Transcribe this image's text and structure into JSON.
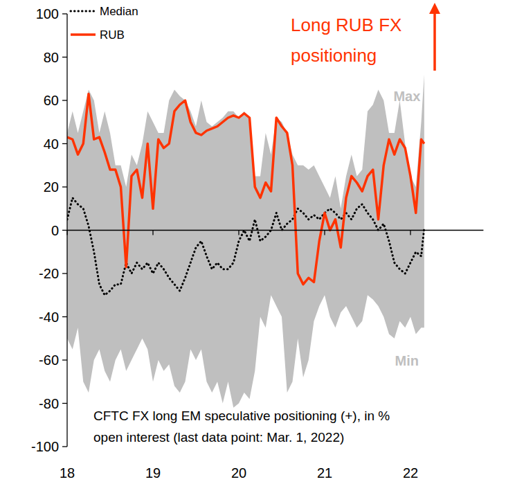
{
  "chart_data": {
    "type": "line",
    "x": [
      2018,
      2018.0625,
      2018.125,
      2018.1875,
      2018.25,
      2018.3125,
      2018.375,
      2018.4375,
      2018.5,
      2018.5625,
      2018.625,
      2018.6875,
      2018.75,
      2018.8125,
      2018.875,
      2018.9375,
      2019,
      2019.0625,
      2019.125,
      2019.1875,
      2019.25,
      2019.3125,
      2019.375,
      2019.4375,
      2019.5,
      2019.5625,
      2019.625,
      2019.6875,
      2019.75,
      2019.8125,
      2019.875,
      2019.9375,
      2020,
      2020.0625,
      2020.125,
      2020.1875,
      2020.25,
      2020.3125,
      2020.375,
      2020.4375,
      2020.5,
      2020.5625,
      2020.625,
      2020.6875,
      2020.75,
      2020.8125,
      2020.875,
      2020.9375,
      2021,
      2021.0625,
      2021.125,
      2021.1875,
      2021.25,
      2021.3125,
      2021.375,
      2021.4375,
      2021.5,
      2021.5625,
      2021.625,
      2021.6875,
      2021.75,
      2021.8125,
      2021.875,
      2021.9375,
      2022,
      2022.0625,
      2022.125,
      2022.16
    ],
    "xlim": [
      2018,
      2022.85
    ],
    "xticks": [
      {
        "value": 2018,
        "label": "18"
      },
      {
        "value": 2019,
        "label": "19"
      },
      {
        "value": 2020,
        "label": "20"
      },
      {
        "value": 2021,
        "label": "21"
      },
      {
        "value": 2022,
        "label": "22"
      }
    ],
    "ylim": [
      -100,
      100
    ],
    "yticks": [
      -100,
      -80,
      -60,
      -40,
      -20,
      0,
      20,
      40,
      60,
      80,
      100
    ],
    "grid": false,
    "legend": "upper left",
    "series": [
      {
        "name": "Max",
        "type": "area",
        "color": "#bfbfbf",
        "values": [
          45,
          55,
          45,
          55,
          65,
          60,
          45,
          55,
          45,
          30,
          30,
          20,
          35,
          30,
          40,
          55,
          50,
          45,
          45,
          60,
          65,
          62,
          60,
          55,
          48,
          60,
          50,
          48,
          50,
          52,
          55,
          55,
          52,
          55,
          52,
          25,
          25,
          45,
          35,
          52,
          50,
          45,
          35,
          30,
          30,
          28,
          30,
          25,
          20,
          15,
          25,
          10,
          25,
          35,
          25,
          28,
          55,
          58,
          65,
          60,
          45,
          45,
          60,
          40,
          25,
          20,
          50,
          72
        ]
      },
      {
        "name": "Min",
        "type": "area",
        "color": "#bfbfbf",
        "values": [
          -50,
          -55,
          -45,
          -70,
          -75,
          -60,
          -55,
          -65,
          -70,
          -60,
          -55,
          -65,
          -60,
          -55,
          -50,
          -55,
          -70,
          -60,
          -65,
          -62,
          -72,
          -75,
          -70,
          -55,
          -60,
          -55,
          -70,
          -75,
          -70,
          -80,
          -70,
          -82,
          -80,
          -75,
          -78,
          -65,
          -40,
          -45,
          -30,
          -35,
          -40,
          -75,
          -70,
          -50,
          -68,
          -60,
          -42,
          -35,
          -30,
          -40,
          -45,
          -38,
          -35,
          -40,
          -45,
          -42,
          -30,
          -32,
          -35,
          -40,
          -48,
          -50,
          -42,
          -45,
          -40,
          -48,
          -45,
          -45
        ]
      },
      {
        "name": "Median",
        "type": "line",
        "color": "#000000",
        "line_style": "dotted",
        "values": [
          5,
          15,
          12,
          10,
          2,
          -10,
          -25,
          -30,
          -28,
          -25,
          -25,
          -15,
          -20,
          -15,
          -18,
          -15,
          -20,
          -15,
          -18,
          -22,
          -25,
          -28,
          -22,
          -15,
          -8,
          -5,
          -12,
          -18,
          -15,
          -18,
          -18,
          -15,
          -5,
          0,
          -5,
          5,
          -5,
          -3,
          0,
          8,
          0,
          3,
          5,
          10,
          8,
          5,
          7,
          5,
          8,
          10,
          8,
          5,
          8,
          5,
          10,
          12,
          8,
          5,
          0,
          3,
          -5,
          -15,
          -18,
          -20,
          -15,
          -10,
          -12,
          1
        ]
      },
      {
        "name": "RUB",
        "type": "line",
        "color": "#ff3300",
        "line_style": "solid",
        "values": [
          43,
          42,
          35,
          40,
          63,
          42,
          43,
          36,
          28,
          28,
          20,
          -17,
          25,
          28,
          15,
          40,
          10,
          42,
          38,
          40,
          55,
          58,
          60,
          50,
          45,
          44,
          46,
          47,
          48,
          50,
          52,
          53,
          52,
          54,
          52,
          20,
          15,
          22,
          18,
          52,
          48,
          45,
          30,
          -20,
          -25,
          -22,
          -24,
          -5,
          8,
          0,
          5,
          -8,
          15,
          25,
          22,
          18,
          25,
          28,
          5,
          30,
          42,
          35,
          42,
          38,
          25,
          8,
          42,
          40
        ]
      }
    ],
    "annotations": [
      {
        "text": [
          "Long RUB FX",
          "positioning"
        ],
        "color": "#ff3300"
      },
      {
        "text": [
          "CFTC FX long EM speculative positioning (+), in %",
          "open interest (last data point: Mar. 1, 2022)"
        ],
        "color": "#000000"
      }
    ]
  }
}
